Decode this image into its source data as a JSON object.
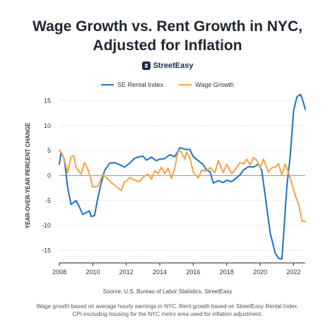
{
  "header": {
    "title_line1": "Wage Growth vs. Rent Growth in NYC,",
    "title_line2": "Adjusted for Inflation",
    "brand": "StreetEasy"
  },
  "footer": {
    "source": "Source: U.S. Bureau of Labor Statistics, StreetEasy",
    "note_line1": "Wage growth based on average hourly earnings in NYC. Rent growth based on StreetEasy Rental Index.",
    "note_line2": "CPI excluding housing for the NYC metro area used for inflation adjustment."
  },
  "colors": {
    "rent": "#1f6fc9",
    "wage": "#f5a246",
    "grid": "#dddddd",
    "axis": "#222222"
  },
  "chart_data": {
    "type": "line",
    "title": "Wage Growth vs. Rent Growth in NYC, Adjusted for Inflation",
    "ylabel": "YEAR-OVER-YEAR PERCENT CHANGE",
    "xlabel": "",
    "xlim": [
      2008,
      2022.7
    ],
    "ylim": [
      -17.5,
      17.5
    ],
    "x_ticks": [
      "2008",
      "2010",
      "2012",
      "2014",
      "2016",
      "2018",
      "2020",
      "2022"
    ],
    "y_ticks": [
      "15",
      "10",
      "5",
      "0",
      "-5",
      "-10",
      "-15"
    ],
    "legend": [
      "SE Rental Index",
      "Wage Growth"
    ],
    "legend_position": "top",
    "grid": "horizontal",
    "series": [
      {
        "name": "SE Rental Index",
        "x": [
          2008.0,
          2008.1,
          2008.3,
          2008.5,
          2008.7,
          2009.0,
          2009.2,
          2009.4,
          2009.6,
          2009.8,
          2009.9,
          2010.1,
          2010.3,
          2010.5,
          2010.7,
          2011.0,
          2011.3,
          2011.6,
          2011.9,
          2012.2,
          2012.5,
          2012.8,
          2013.0,
          2013.2,
          2013.5,
          2013.8,
          2014.0,
          2014.3,
          2014.6,
          2014.9,
          2015.2,
          2015.5,
          2015.8,
          2016.0,
          2016.3,
          2016.6,
          2016.8,
          2017.0,
          2017.2,
          2017.5,
          2017.8,
          2018.0,
          2018.3,
          2018.5,
          2018.8,
          2019.0,
          2019.3,
          2019.6,
          2019.9,
          2020.1,
          2020.3,
          2020.6,
          2020.9,
          2021.1,
          2021.3,
          2021.4,
          2021.6,
          2021.8,
          2022.0,
          2022.2,
          2022.4,
          2022.5,
          2022.7
        ],
        "values": [
          2.3,
          4.6,
          3.3,
          -2.5,
          -5.8,
          -5.0,
          -6.3,
          -7.8,
          -7.4,
          -7.1,
          -8.2,
          -8.0,
          -4.5,
          -1.5,
          1.0,
          2.5,
          2.6,
          2.2,
          1.7,
          2.5,
          3.5,
          3.8,
          3.9,
          3.1,
          3.7,
          3.0,
          3.3,
          3.4,
          4.2,
          3.8,
          5.6,
          5.3,
          5.2,
          3.8,
          3.0,
          2.2,
          1.1,
          0.8,
          -1.5,
          -1.0,
          -1.4,
          -0.9,
          -1.2,
          -0.7,
          0.2,
          1.1,
          1.8,
          1.7,
          2.3,
          1.0,
          -4.0,
          -11.5,
          -15.5,
          -16.6,
          -16.7,
          -12.0,
          -2.0,
          4.0,
          13.0,
          15.8,
          16.3,
          15.6,
          13.3
        ]
      },
      {
        "name": "Wage Growth",
        "x": [
          2008.0,
          2008.15,
          2008.3,
          2008.5,
          2008.7,
          2008.85,
          2009.0,
          2009.3,
          2009.5,
          2009.7,
          2009.9,
          2010.0,
          2010.3,
          2010.6,
          2010.9,
          2011.1,
          2011.4,
          2011.7,
          2011.9,
          2012.0,
          2012.2,
          2012.5,
          2012.8,
          2013.0,
          2013.3,
          2013.5,
          2013.7,
          2013.9,
          2014.1,
          2014.3,
          2014.5,
          2014.7,
          2014.9,
          2015.1,
          2015.3,
          2015.5,
          2015.6,
          2015.8,
          2016.0,
          2016.3,
          2016.5,
          2016.8,
          2017.0,
          2017.3,
          2017.5,
          2017.8,
          2018.0,
          2018.3,
          2018.5,
          2018.8,
          2019.0,
          2019.2,
          2019.4,
          2019.6,
          2019.8,
          2020.0,
          2020.2,
          2020.5,
          2020.7,
          2020.9,
          2021.1,
          2021.3,
          2021.5,
          2021.7,
          2021.9,
          2022.1,
          2022.3,
          2022.5,
          2022.7
        ],
        "values": [
          5.1,
          4.4,
          3.3,
          0.6,
          3.8,
          4.0,
          1.6,
          0.3,
          2.6,
          1.3,
          -0.9,
          -2.3,
          -2.2,
          0.3,
          -0.7,
          -1.4,
          -2.2,
          -3.0,
          -1.2,
          -1.1,
          -0.4,
          -0.9,
          -1.2,
          -0.3,
          0.3,
          -0.7,
          1.0,
          0.4,
          1.7,
          0.4,
          1.5,
          -0.6,
          1.5,
          5.0,
          4.7,
          3.3,
          4.7,
          3.6,
          0.7,
          -0.5,
          1.1,
          0.9,
          1.6,
          0.6,
          3.0,
          0.6,
          2.3,
          0.4,
          1.2,
          2.6,
          2.3,
          3.3,
          2.2,
          3.6,
          3.1,
          1.5,
          3.3,
          0.7,
          1.6,
          1.7,
          2.4,
          0.1,
          2.3,
          0.6,
          -1.7,
          -4.0,
          -5.7,
          -9.1,
          -9.2
        ]
      }
    ]
  }
}
